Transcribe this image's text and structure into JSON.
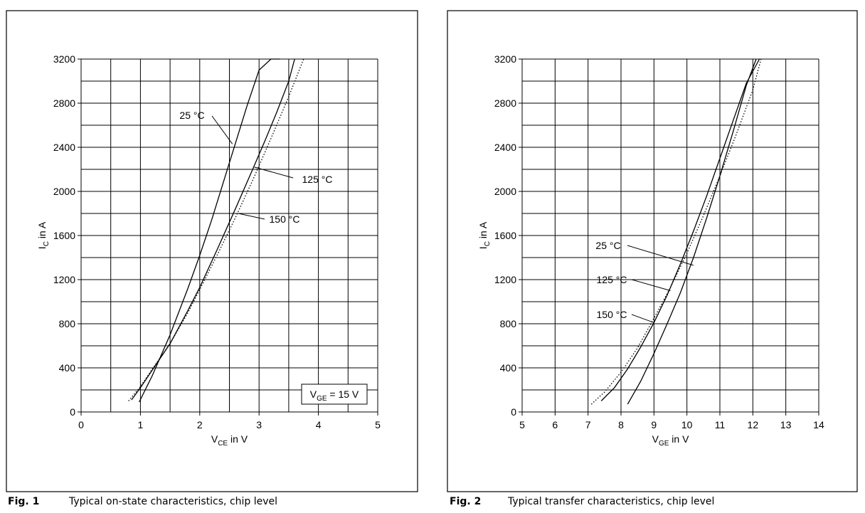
{
  "chart_data": [
    {
      "type": "line",
      "title": "",
      "xlabel_main": "V",
      "xlabel_sub": "CE",
      "xlabel_unit": " in V",
      "ylabel_main": "I",
      "ylabel_sub": "C",
      "ylabel_unit": " in A",
      "xlim": [
        0,
        5
      ],
      "ylim": [
        0,
        3200
      ],
      "x_ticks": [
        "0",
        "1",
        "2",
        "3",
        "4",
        "5"
      ],
      "y_ticks": [
        "0",
        "400",
        "800",
        "1200",
        "1600",
        "2000",
        "2400",
        "2800",
        "3200"
      ],
      "grid": true,
      "annotation": {
        "main": "V",
        "sub": "GE",
        "rest": " = 15 V"
      },
      "series": [
        {
          "name": "25 °C",
          "style": "solid",
          "x": [
            0.98,
            1.2,
            1.5,
            1.8,
            2.0,
            2.2,
            2.5,
            2.8,
            3.0,
            3.2,
            3.35
          ],
          "y": [
            90,
            330,
            700,
            1120,
            1420,
            1740,
            2260,
            2780,
            3100,
            3200,
            3200
          ]
        },
        {
          "name": "125 °C",
          "style": "solid",
          "x": [
            0.85,
            1.0,
            1.2,
            1.5,
            1.8,
            2.0,
            2.3,
            2.6,
            2.9,
            3.1,
            3.3,
            3.5,
            3.6
          ],
          "y": [
            110,
            220,
            380,
            620,
            920,
            1130,
            1480,
            1840,
            2210,
            2460,
            2720,
            3000,
            3200
          ]
        },
        {
          "name": "150 °C",
          "style": "dotted",
          "x": [
            0.8,
            1.0,
            1.2,
            1.5,
            1.8,
            2.0,
            2.3,
            2.6,
            2.9,
            3.2,
            3.5,
            3.75
          ],
          "y": [
            100,
            230,
            390,
            620,
            900,
            1110,
            1430,
            1760,
            2110,
            2480,
            2860,
            3200
          ]
        }
      ],
      "labels": [
        {
          "text": "25 °C",
          "series": "25 °C"
        },
        {
          "text": "125 °C",
          "series": "125 °C"
        },
        {
          "text": "150 °C",
          "series": "150 °C"
        }
      ]
    },
    {
      "type": "line",
      "title": "",
      "xlabel_main": "V",
      "xlabel_sub": "GE",
      "xlabel_unit": " in V",
      "ylabel_main": "I",
      "ylabel_sub": "C",
      "ylabel_unit": " in A",
      "xlim": [
        5,
        14
      ],
      "ylim": [
        0,
        3200
      ],
      "x_ticks": [
        "5",
        "6",
        "7",
        "8",
        "9",
        "10",
        "11",
        "12",
        "13",
        "14"
      ],
      "y_ticks": [
        "0",
        "400",
        "800",
        "1200",
        "1600",
        "2000",
        "2400",
        "2800",
        "3200"
      ],
      "grid": true,
      "series": [
        {
          "name": "25 °C",
          "style": "solid",
          "x": [
            8.2,
            8.6,
            9.0,
            9.4,
            9.8,
            10.2,
            10.6,
            11.0,
            11.4,
            11.8,
            12.1
          ],
          "y": [
            70,
            280,
            530,
            800,
            1080,
            1400,
            1760,
            2140,
            2540,
            2960,
            3200
          ]
        },
        {
          "name": "125 °C",
          "style": "solid",
          "x": [
            7.4,
            7.8,
            8.2,
            8.6,
            9.0,
            9.4,
            9.8,
            10.2,
            10.6,
            11.0,
            11.4,
            11.8,
            12.2
          ],
          "y": [
            100,
            220,
            390,
            590,
            810,
            1060,
            1340,
            1640,
            1960,
            2300,
            2640,
            2980,
            3200
          ]
        },
        {
          "name": "150 °C",
          "style": "dotted",
          "x": [
            7.1,
            7.5,
            8.0,
            8.5,
            9.0,
            9.5,
            10.0,
            10.5,
            11.0,
            11.5,
            12.0,
            12.25
          ],
          "y": [
            70,
            180,
            360,
            580,
            850,
            1130,
            1440,
            1780,
            2140,
            2520,
            2920,
            3200
          ]
        }
      ],
      "labels": [
        {
          "text": "25 °C",
          "series": "25 °C"
        },
        {
          "text": "125 °C",
          "series": "125 °C"
        },
        {
          "text": "150 °C",
          "series": "150 °C"
        }
      ]
    }
  ],
  "captions": [
    {
      "number": "Fig. 1",
      "text": "Typical on-state characteristics, chip level"
    },
    {
      "number": "Fig. 2",
      "text": "Typical transfer characteristics, chip level"
    }
  ]
}
